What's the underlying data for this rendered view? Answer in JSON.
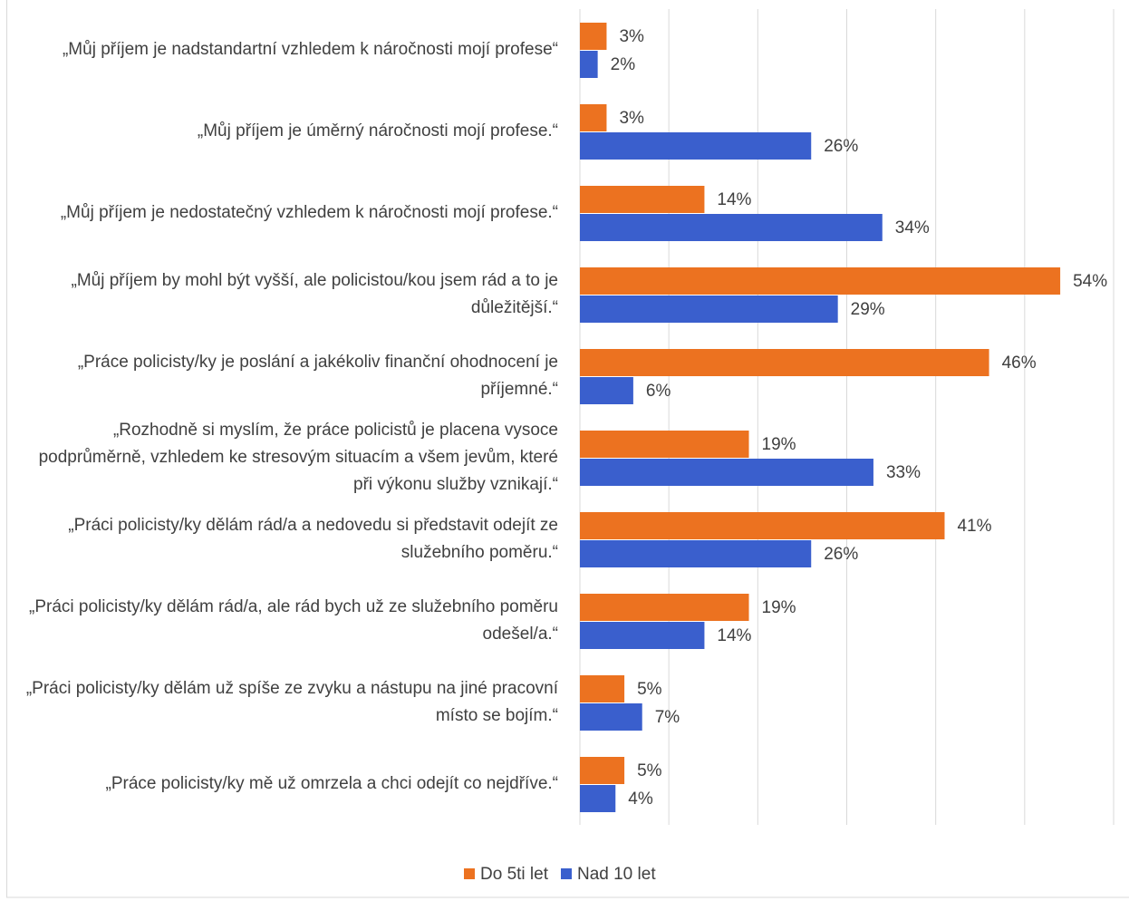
{
  "chart_data": {
    "type": "hbar",
    "categories": [
      "„Můj příjem je nadstandartní vzhledem k náročnosti mojí profese“",
      "„Můj příjem je úměrný náročnosti  mojí profese.“",
      "„Můj příjem je nedostatečný vzhledem k náročnosti mojí profese.“",
      "„Můj příjem by mohl být vyšší, ale policistou/kou jsem rád a to je důležitější.“",
      "„Práce policisty/ky je poslání a jakékoliv finanční ohodnocení je příjemné.“",
      "„Rozhodně si myslím, že práce policistů je placena vysoce podprůměrně, vzhledem ke stresovým situacím a všem jevům, které při výkonu služby vznikají.“",
      "„Práci policisty/ky dělám rád/a a nedovedu si představit odejít ze služebního poměru.“",
      "„Práci policisty/ky dělám rád/a, ale rád bych už ze služebního poměru odešel/a.“",
      "„Práci policisty/ky dělám už spíše ze zvyku a nástupu na jiné pracovní místo se bojím.“",
      "„Práce policisty/ky mě už omrzela a chci odejít co nejdříve.“"
    ],
    "series": [
      {
        "name": "Do 5ti let",
        "color": "#ec7220",
        "values": [
          3,
          3,
          14,
          54,
          46,
          19,
          41,
          19,
          5,
          5
        ],
        "value_labels": [
          "3%",
          "3%",
          "14%",
          "54%",
          "46%",
          "19%",
          "41%",
          "19%",
          "5%",
          "5%"
        ]
      },
      {
        "name": "Nad 10 let",
        "color": "#3a5fcd",
        "values": [
          2,
          26,
          34,
          29,
          6,
          33,
          26,
          14,
          7,
          4
        ],
        "value_labels": [
          "2%",
          "26%",
          "34%",
          "29%",
          "6%",
          "33%",
          "26%",
          "14%",
          "7%",
          "4%"
        ]
      }
    ],
    "xlim": [
      0,
      60
    ],
    "xticks": [
      0,
      10,
      20,
      30,
      40,
      50,
      60
    ],
    "grid": true
  }
}
